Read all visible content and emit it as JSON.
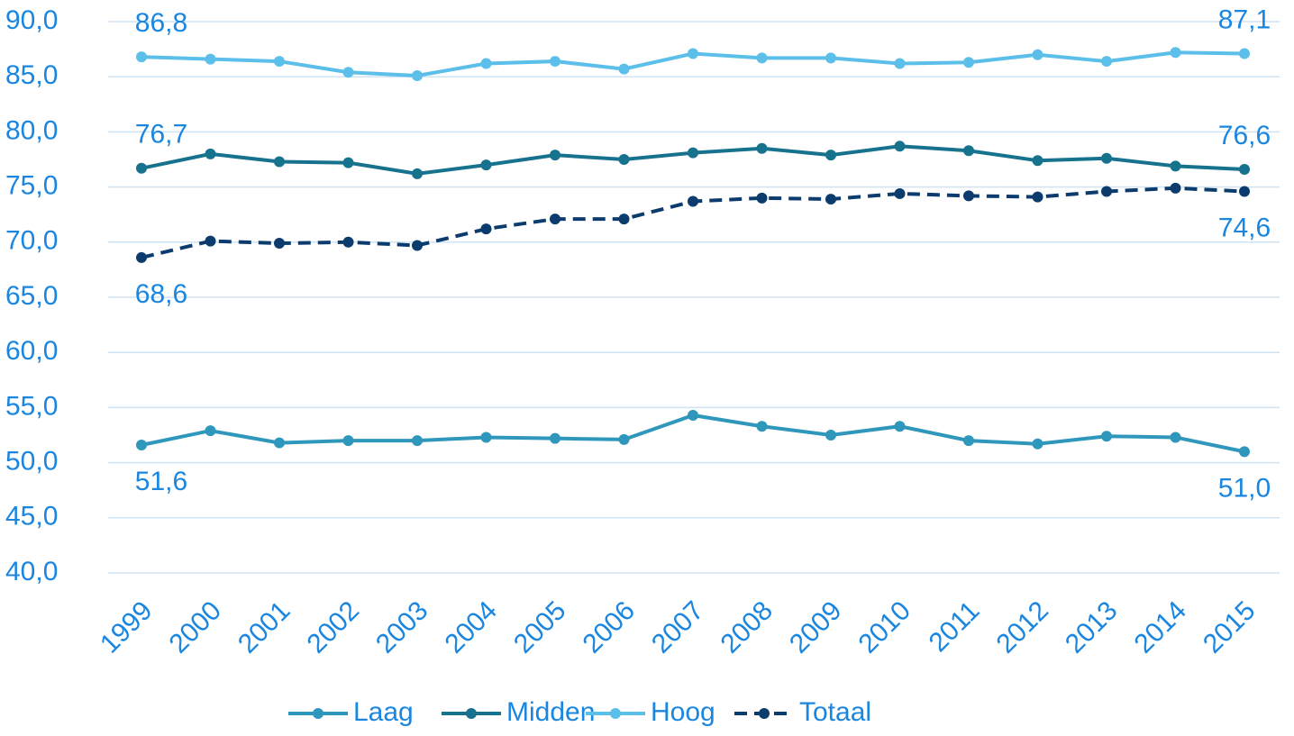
{
  "chart_data": {
    "type": "line",
    "categories": [
      "1999",
      "2000",
      "2001",
      "2002",
      "2003",
      "2004",
      "2005",
      "2006",
      "2007",
      "2008",
      "2009",
      "2010",
      "2011",
      "2012",
      "2013",
      "2014",
      "2015"
    ],
    "series": [
      {
        "name": "Laag",
        "color": "#2f97bb",
        "dashed": false,
        "values": [
          51.6,
          52.9,
          51.8,
          52.0,
          52.0,
          52.3,
          52.2,
          52.1,
          54.3,
          53.3,
          52.5,
          53.3,
          52.0,
          51.7,
          52.4,
          52.3,
          51.0
        ],
        "value_labels": [
          "51,6",
          null,
          null,
          null,
          null,
          null,
          null,
          null,
          null,
          null,
          null,
          null,
          null,
          null,
          null,
          null,
          "51,0"
        ]
      },
      {
        "name": "Midden",
        "color": "#17728e",
        "dashed": false,
        "values": [
          76.7,
          78.0,
          77.3,
          77.2,
          76.2,
          77.0,
          77.9,
          77.5,
          78.1,
          78.5,
          77.9,
          78.7,
          78.3,
          77.4,
          77.6,
          76.9,
          76.6
        ],
        "value_labels": [
          "76,7",
          null,
          null,
          null,
          null,
          null,
          null,
          null,
          null,
          null,
          null,
          null,
          null,
          null,
          null,
          null,
          "76,6"
        ]
      },
      {
        "name": "Hoog",
        "color": "#5bbfea",
        "dashed": false,
        "values": [
          86.8,
          86.6,
          86.4,
          85.4,
          85.1,
          86.2,
          86.4,
          85.7,
          87.1,
          86.7,
          86.7,
          86.2,
          86.3,
          87.0,
          86.4,
          87.2,
          87.1
        ],
        "value_labels": [
          "86,8",
          null,
          null,
          null,
          null,
          null,
          null,
          null,
          null,
          null,
          null,
          null,
          null,
          null,
          null,
          null,
          "87,1"
        ]
      },
      {
        "name": "Totaal",
        "color": "#0b3c6d",
        "dashed": true,
        "values": [
          68.6,
          70.1,
          69.9,
          70.0,
          69.7,
          71.2,
          72.1,
          72.1,
          73.7,
          74.0,
          73.9,
          74.4,
          74.2,
          74.1,
          74.6,
          74.9,
          74.6
        ],
        "value_labels": [
          "68,6",
          null,
          null,
          null,
          null,
          null,
          null,
          null,
          null,
          null,
          null,
          null,
          null,
          null,
          null,
          null,
          "74,6"
        ]
      }
    ],
    "ylim": [
      40,
      90
    ],
    "yticks": [
      {
        "value": 40,
        "label": "40,0"
      },
      {
        "value": 45,
        "label": "45,0"
      },
      {
        "value": 50,
        "label": "50,0"
      },
      {
        "value": 55,
        "label": "55,0"
      },
      {
        "value": 60,
        "label": "60,0"
      },
      {
        "value": 65,
        "label": "65,0"
      },
      {
        "value": 70,
        "label": "70,0"
      },
      {
        "value": 75,
        "label": "75,0"
      },
      {
        "value": 80,
        "label": "80,0"
      },
      {
        "value": 85,
        "label": "85,0"
      },
      {
        "value": 90,
        "label": "90,0"
      }
    ],
    "grid": true,
    "legend": "bottom",
    "text_color": "#1a86e0"
  }
}
